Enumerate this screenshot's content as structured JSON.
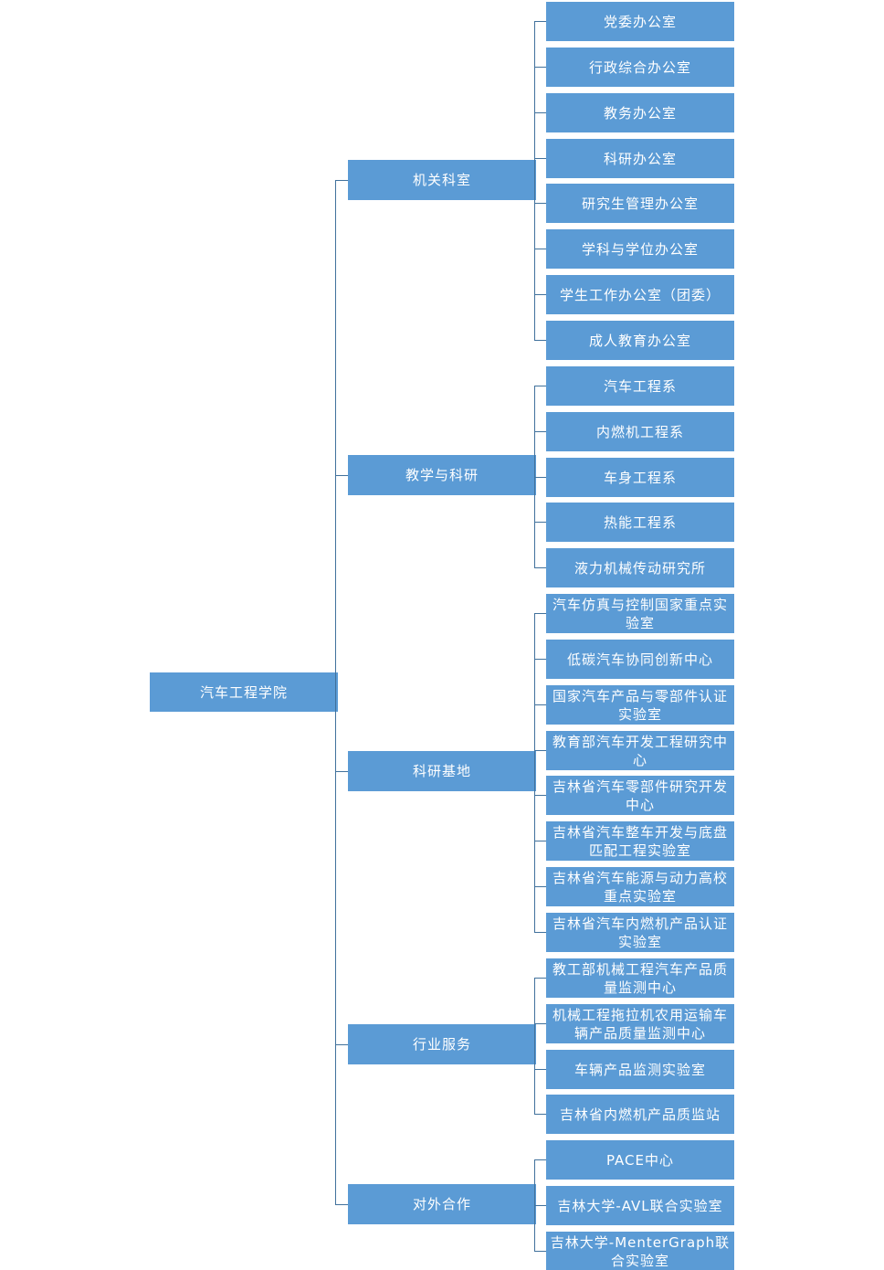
{
  "colors": {
    "box": "#5b9bd5",
    "connector": "#41719c",
    "text": "#ffffff"
  },
  "root": {
    "label": "汽车工程学院"
  },
  "groups": [
    {
      "label": "机关科室",
      "children": [
        "党委办公室",
        "行政综合办公室",
        "教务办公室",
        "科研办公室",
        "研究生管理办公室",
        "学科与学位办公室",
        "学生工作办公室（团委）",
        "成人教育办公室"
      ]
    },
    {
      "label": "教学与科研",
      "children": [
        "汽车工程系",
        "内燃机工程系",
        "车身工程系",
        "热能工程系",
        "液力机械传动研究所"
      ]
    },
    {
      "label": "科研基地",
      "children": [
        "汽车仿真与控制国家重点实验室",
        "低碳汽车协同创新中心",
        "国家汽车产品与零部件认证实验室",
        "教育部汽车开发工程研究中心",
        "吉林省汽车零部件研究开发中心",
        "吉林省汽车整车开发与底盘匹配工程实验室",
        "吉林省汽车能源与动力高校重点实验室",
        "吉林省汽车内燃机产品认证实验室"
      ]
    },
    {
      "label": "行业服务",
      "children": [
        "教工部机械工程汽车产品质量监测中心",
        "机械工程拖拉机农用运输车辆产品质量监测中心",
        "车辆产品监测实验室",
        "吉林省内燃机产品质监站"
      ]
    },
    {
      "label": "对外合作",
      "children": [
        "PACE中心",
        "吉林大学-AVL联合实验室",
        "吉林大学-MenterGraph联合实验室"
      ]
    }
  ]
}
